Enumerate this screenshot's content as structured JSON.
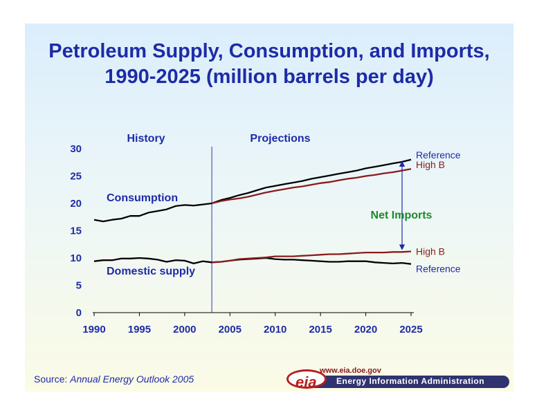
{
  "title": {
    "line1": "Petroleum Supply, Consumption, and Imports,",
    "line2": "1990-2025 (million barrels per day)"
  },
  "source": {
    "prefix": "Source: ",
    "publication": "Annual Energy Outlook 2005"
  },
  "logo": {
    "url": "www.eia.doe.gov",
    "mark": "eia",
    "name": "Energy Information Administration"
  },
  "colors": {
    "title": "#1d2ba6",
    "reference_line": "#000000",
    "high_b_line": "#8b1a1a",
    "net_imports": "#1a8a2a",
    "arrow": "#1d2ba6",
    "divider": "#2a3a9a"
  },
  "chart_data": {
    "type": "line",
    "xlim": [
      1990,
      2025
    ],
    "ylim": [
      0,
      30
    ],
    "x_ticks": [
      1990,
      1995,
      2000,
      2005,
      2010,
      2015,
      2020,
      2025
    ],
    "y_ticks": [
      0,
      5,
      10,
      15,
      20,
      25,
      30
    ],
    "grid": false,
    "history_end": 2003,
    "section_labels": {
      "history": "History",
      "projections": "Projections"
    },
    "annotations": {
      "consumption": "Consumption",
      "domestic_supply": "Domestic supply",
      "net_imports": "Net Imports",
      "net_imports_year": 2025
    },
    "series": [
      {
        "group": "consumption",
        "label": "Reference",
        "style": "reference",
        "x": [
          1990,
          1991,
          1992,
          1993,
          1994,
          1995,
          1996,
          1997,
          1998,
          1999,
          2000,
          2001,
          2002,
          2003,
          2004,
          2005,
          2006,
          2007,
          2008,
          2009,
          2010,
          2011,
          2012,
          2013,
          2014,
          2015,
          2016,
          2017,
          2018,
          2019,
          2020,
          2021,
          2022,
          2023,
          2024,
          2025
        ],
        "y": [
          17.0,
          16.7,
          17.0,
          17.2,
          17.7,
          17.7,
          18.3,
          18.6,
          18.9,
          19.5,
          19.7,
          19.6,
          19.8,
          20.0,
          20.6,
          21.0,
          21.5,
          21.9,
          22.4,
          22.9,
          23.2,
          23.5,
          23.8,
          24.1,
          24.5,
          24.8,
          25.1,
          25.4,
          25.7,
          26.0,
          26.4,
          26.7,
          27.0,
          27.3,
          27.6,
          28.0
        ]
      },
      {
        "group": "consumption",
        "label": "High B",
        "style": "high_b",
        "x": [
          2003,
          2004,
          2005,
          2006,
          2007,
          2008,
          2009,
          2010,
          2011,
          2012,
          2013,
          2014,
          2015,
          2016,
          2017,
          2018,
          2019,
          2020,
          2021,
          2022,
          2023,
          2024,
          2025
        ],
        "y": [
          20.0,
          20.4,
          20.7,
          20.9,
          21.2,
          21.6,
          22.0,
          22.3,
          22.6,
          22.9,
          23.1,
          23.4,
          23.7,
          23.9,
          24.2,
          24.5,
          24.7,
          25.0,
          25.2,
          25.5,
          25.7,
          26.0,
          26.3
        ]
      },
      {
        "group": "domestic_supply",
        "label": "Reference",
        "style": "reference",
        "x": [
          1990,
          1991,
          1992,
          1993,
          1994,
          1995,
          1996,
          1997,
          1998,
          1999,
          2000,
          2001,
          2002,
          2003,
          2004,
          2005,
          2006,
          2007,
          2008,
          2009,
          2010,
          2011,
          2012,
          2013,
          2014,
          2015,
          2016,
          2017,
          2018,
          2019,
          2020,
          2021,
          2022,
          2023,
          2024,
          2025
        ],
        "y": [
          9.4,
          9.6,
          9.6,
          9.9,
          9.9,
          10.0,
          9.9,
          9.7,
          9.3,
          9.6,
          9.5,
          9.0,
          9.4,
          9.2,
          9.3,
          9.5,
          9.7,
          9.8,
          9.9,
          10.0,
          9.8,
          9.7,
          9.7,
          9.6,
          9.5,
          9.4,
          9.3,
          9.3,
          9.4,
          9.4,
          9.4,
          9.2,
          9.1,
          9.0,
          9.1,
          8.9
        ]
      },
      {
        "group": "domestic_supply",
        "label": "High B",
        "style": "high_b",
        "x": [
          2003,
          2004,
          2005,
          2006,
          2007,
          2008,
          2009,
          2010,
          2011,
          2012,
          2013,
          2014,
          2015,
          2016,
          2017,
          2018,
          2019,
          2020,
          2021,
          2022,
          2023,
          2024,
          2025
        ],
        "y": [
          9.2,
          9.3,
          9.5,
          9.8,
          9.9,
          10.0,
          10.1,
          10.3,
          10.3,
          10.3,
          10.4,
          10.5,
          10.6,
          10.7,
          10.7,
          10.8,
          10.9,
          11.0,
          11.0,
          11.0,
          11.1,
          11.1,
          11.2
        ]
      }
    ]
  }
}
